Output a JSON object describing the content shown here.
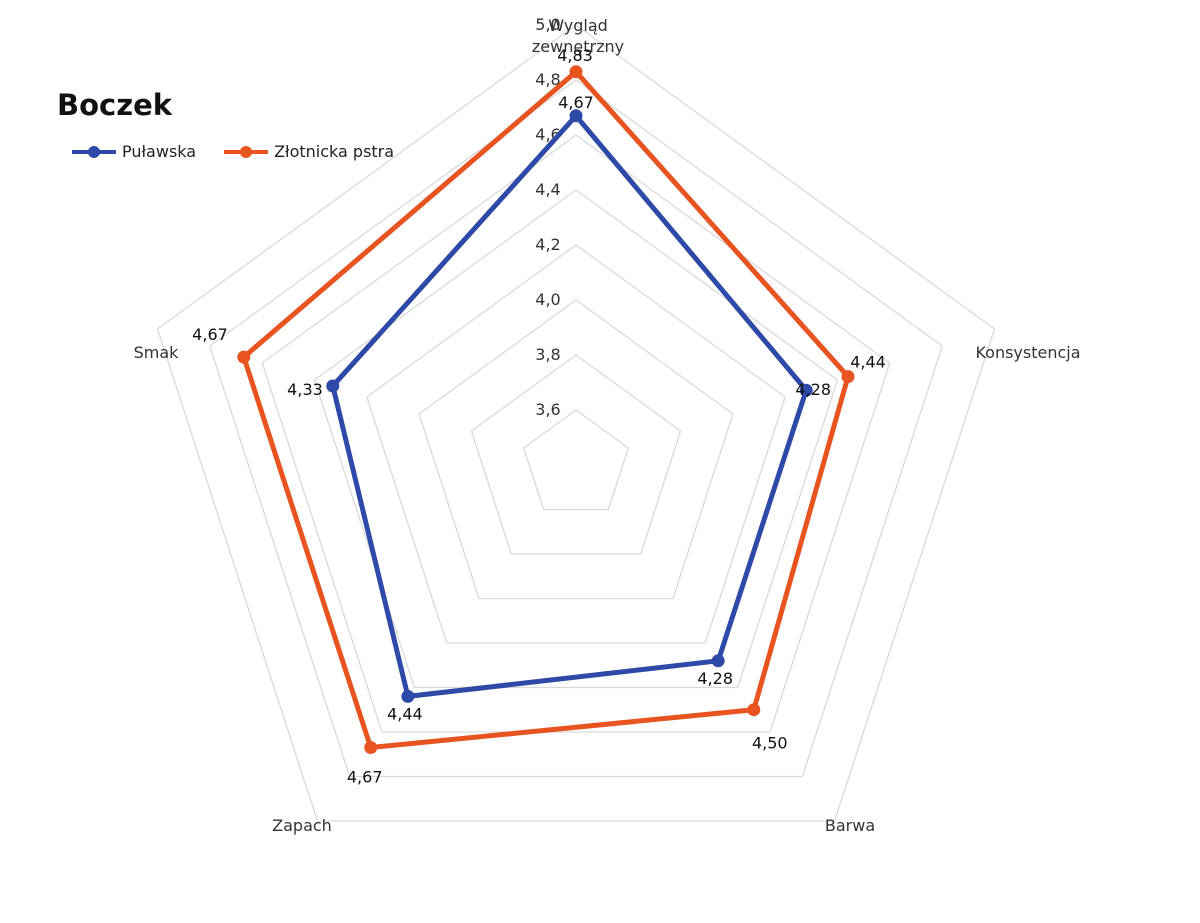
{
  "chart_data": {
    "type": "radar",
    "title": "Boczek",
    "axes": [
      "Wygląd zewnętrzny",
      "Konsystencja",
      "Barwa",
      "Zapach",
      "Smak"
    ],
    "axis_label_lines": [
      [
        "Wygląd",
        "zewnętrzny"
      ],
      [
        "Konsystencja"
      ],
      [
        "Barwa"
      ],
      [
        "Zapach"
      ],
      [
        "Smak"
      ]
    ],
    "rlim": [
      3.4,
      5.0
    ],
    "ticks": [
      3.6,
      3.8,
      4.0,
      4.2,
      4.4,
      4.6,
      4.8,
      5.0
    ],
    "tick_labels": [
      "3,6",
      "3,8",
      "4,0",
      "4,2",
      "4,4",
      "4,6",
      "4,8",
      "5,0"
    ],
    "grid": true,
    "legend_position": "top-left",
    "series": [
      {
        "name": "Puławska",
        "color": "#2E4AA8",
        "values": [
          4.67,
          4.28,
          4.28,
          4.44,
          4.33
        ],
        "labels": [
          "4,67",
          "4,28",
          "4,28",
          "4,44",
          "4,33"
        ]
      },
      {
        "name": "Złotnicka pstra",
        "color": "#E8541F",
        "values": [
          4.83,
          4.44,
          4.5,
          4.67,
          4.67
        ],
        "labels": [
          "4,83",
          "4,44",
          "4,50",
          "4,67",
          "4,67"
        ]
      }
    ]
  }
}
